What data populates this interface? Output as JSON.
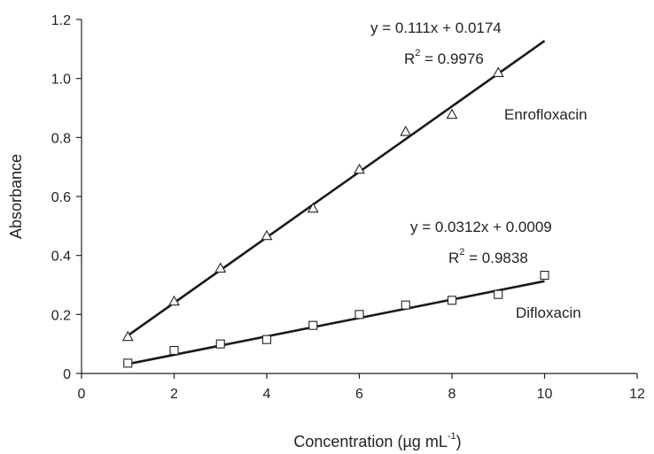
{
  "chart_data": {
    "type": "scatter",
    "xlabel": "Concentration (µg mL",
    "xlabel_sup": "-1",
    "xlabel_close": ")",
    "ylabel": "Absorbance",
    "xlim": [
      0,
      12
    ],
    "ylim": [
      0,
      1.2
    ],
    "x_ticks": [
      "0",
      "2",
      "4",
      "6",
      "8",
      "10",
      "12"
    ],
    "y_ticks": [
      "0",
      "0.2",
      "0.4",
      "0.6",
      "0.8",
      "1.0",
      "1.2"
    ],
    "grid": false,
    "legend": "none",
    "series": [
      {
        "name": "Enrofloxacin",
        "marker": "triangle",
        "x": [
          1,
          2,
          3,
          4,
          5,
          6,
          7,
          8,
          9
        ],
        "y": [
          0.125,
          0.245,
          0.357,
          0.467,
          0.56,
          0.692,
          0.82,
          0.878,
          1.02
        ],
        "fit": {
          "slope": 0.111,
          "intercept": 0.0174,
          "x_range": [
            1,
            10
          ]
        },
        "equation": "y = 0.111x + 0.0174",
        "r2_prefix": "R",
        "r2_sup": "2",
        "r2_value": " = 0.9976"
      },
      {
        "name": "Difloxacin",
        "marker": "square",
        "x": [
          1,
          2,
          3,
          4,
          5,
          6,
          7,
          8,
          9,
          10
        ],
        "y": [
          0.035,
          0.078,
          0.1,
          0.115,
          0.163,
          0.2,
          0.232,
          0.248,
          0.268,
          0.333
        ],
        "fit": {
          "slope": 0.0312,
          "intercept": 0.0009,
          "x_range": [
            1,
            10
          ]
        },
        "equation": "y = 0.0312x + 0.0009",
        "r2_prefix": "R",
        "r2_sup": "2",
        "r2_value": " = 0.9838"
      }
    ]
  }
}
